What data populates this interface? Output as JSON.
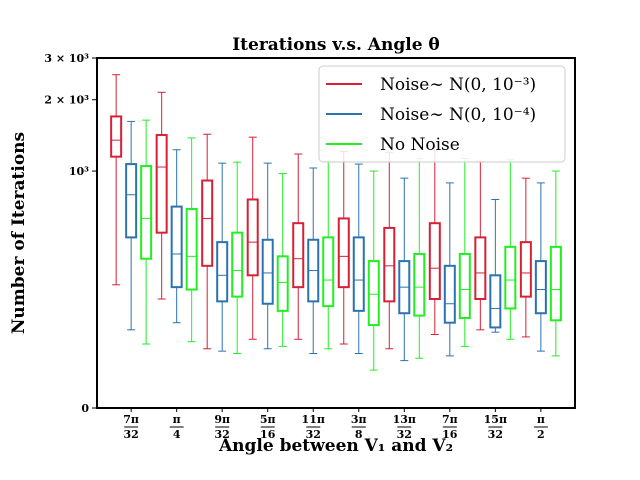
{
  "chart_data": {
    "type": "box",
    "title": "Iterations v.s. Angle θ",
    "xlabel": "Angle between V₁ and V₂",
    "ylabel": "Number of Iterations",
    "y_scale": "symlog",
    "ylim": [
      0,
      3000
    ],
    "yticks": [
      {
        "value": 0,
        "label": "0"
      },
      {
        "value": 1000,
        "label": "10³"
      },
      {
        "value": 2000,
        "label": "2 × 10³"
      },
      {
        "value": 3000,
        "label": "3 × 10³"
      }
    ],
    "categories": [
      {
        "num": "7π",
        "den": "32"
      },
      {
        "num": "π",
        "den": "4"
      },
      {
        "num": "9π",
        "den": "32"
      },
      {
        "num": "5π",
        "den": "16"
      },
      {
        "num": "11π",
        "den": "32"
      },
      {
        "num": "3π",
        "den": "8"
      },
      {
        "num": "13π",
        "den": "32"
      },
      {
        "num": "7π",
        "den": "16"
      },
      {
        "num": "15π",
        "den": "32"
      },
      {
        "num": "π",
        "den": "2"
      }
    ],
    "legend_position": "top-right",
    "grid": false,
    "series": [
      {
        "name": "Noise∼ N(0, 10⁻³)",
        "color": "#d62035",
        "boxes": [
          {
            "whislo": 520,
            "q1": 1150,
            "med": 1350,
            "q3": 1700,
            "whishi": 2550
          },
          {
            "whislo": 460,
            "q1": 740,
            "med": 1040,
            "q3": 1420,
            "whishi": 2150
          },
          {
            "whislo": 250,
            "q1": 600,
            "med": 800,
            "q3": 960,
            "whishi": 1430
          },
          {
            "whislo": 290,
            "q1": 560,
            "med": 700,
            "q3": 880,
            "whishi": 1390
          },
          {
            "whislo": 290,
            "q1": 510,
            "med": 630,
            "q3": 780,
            "whishi": 1180
          },
          {
            "whislo": 270,
            "q1": 510,
            "med": 640,
            "q3": 800,
            "whishi": 1210
          },
          {
            "whislo": 250,
            "q1": 450,
            "med": 600,
            "q3": 760,
            "whishi": 1200
          },
          {
            "whislo": 310,
            "q1": 460,
            "med": 590,
            "q3": 780,
            "whishi": 1320
          },
          {
            "whislo": 330,
            "q1": 460,
            "med": 570,
            "q3": 720,
            "whishi": 1100
          },
          {
            "whislo": 300,
            "q1": 470,
            "med": 570,
            "q3": 700,
            "whishi": 970
          }
        ]
      },
      {
        "name": "Noise∼ N(0, 10⁻⁴)",
        "color": "#2b73b0",
        "boxes": [
          {
            "whislo": 330,
            "q1": 720,
            "med": 900,
            "q3": 1070,
            "whishi": 1620
          },
          {
            "whislo": 360,
            "q1": 510,
            "med": 650,
            "q3": 850,
            "whishi": 1230
          },
          {
            "whislo": 240,
            "q1": 450,
            "med": 560,
            "q3": 700,
            "whishi": 1080
          },
          {
            "whislo": 250,
            "q1": 440,
            "med": 570,
            "q3": 710,
            "whishi": 1080
          },
          {
            "whislo": 230,
            "q1": 450,
            "med": 580,
            "q3": 710,
            "whishi": 1030
          },
          {
            "whislo": 230,
            "q1": 410,
            "med": 540,
            "q3": 720,
            "whishi": 1070
          },
          {
            "whislo": 200,
            "q1": 400,
            "med": 510,
            "q3": 620,
            "whishi": 970
          },
          {
            "whislo": 220,
            "q1": 360,
            "med": 440,
            "q3": 600,
            "whishi": 950
          },
          {
            "whislo": 320,
            "q1": 340,
            "med": 420,
            "q3": 560,
            "whishi": 880
          },
          {
            "whislo": 240,
            "q1": 400,
            "med": 500,
            "q3": 620,
            "whishi": 950
          }
        ]
      },
      {
        "name": "No Noise",
        "color": "#22ee22",
        "boxes": [
          {
            "whislo": 270,
            "q1": 630,
            "med": 800,
            "q3": 1050,
            "whishi": 1640
          },
          {
            "whislo": 280,
            "q1": 500,
            "med": 640,
            "q3": 840,
            "whishi": 1380
          },
          {
            "whislo": 230,
            "q1": 470,
            "med": 580,
            "q3": 740,
            "whishi": 1090
          },
          {
            "whislo": 260,
            "q1": 410,
            "med": 530,
            "q3": 640,
            "whishi": 990
          },
          {
            "whislo": 250,
            "q1": 430,
            "med": 540,
            "q3": 720,
            "whishi": 1100
          },
          {
            "whislo": 160,
            "q1": 350,
            "med": 480,
            "q3": 620,
            "whishi": 1000
          },
          {
            "whislo": 210,
            "q1": 390,
            "med": 510,
            "q3": 650,
            "whishi": 1130
          },
          {
            "whislo": 260,
            "q1": 380,
            "med": 500,
            "q3": 650,
            "whishi": 1130
          },
          {
            "whislo": 290,
            "q1": 420,
            "med": 540,
            "q3": 680,
            "whishi": 1120
          },
          {
            "whislo": 220,
            "q1": 370,
            "med": 500,
            "q3": 680,
            "whishi": 1000
          }
        ]
      }
    ]
  }
}
